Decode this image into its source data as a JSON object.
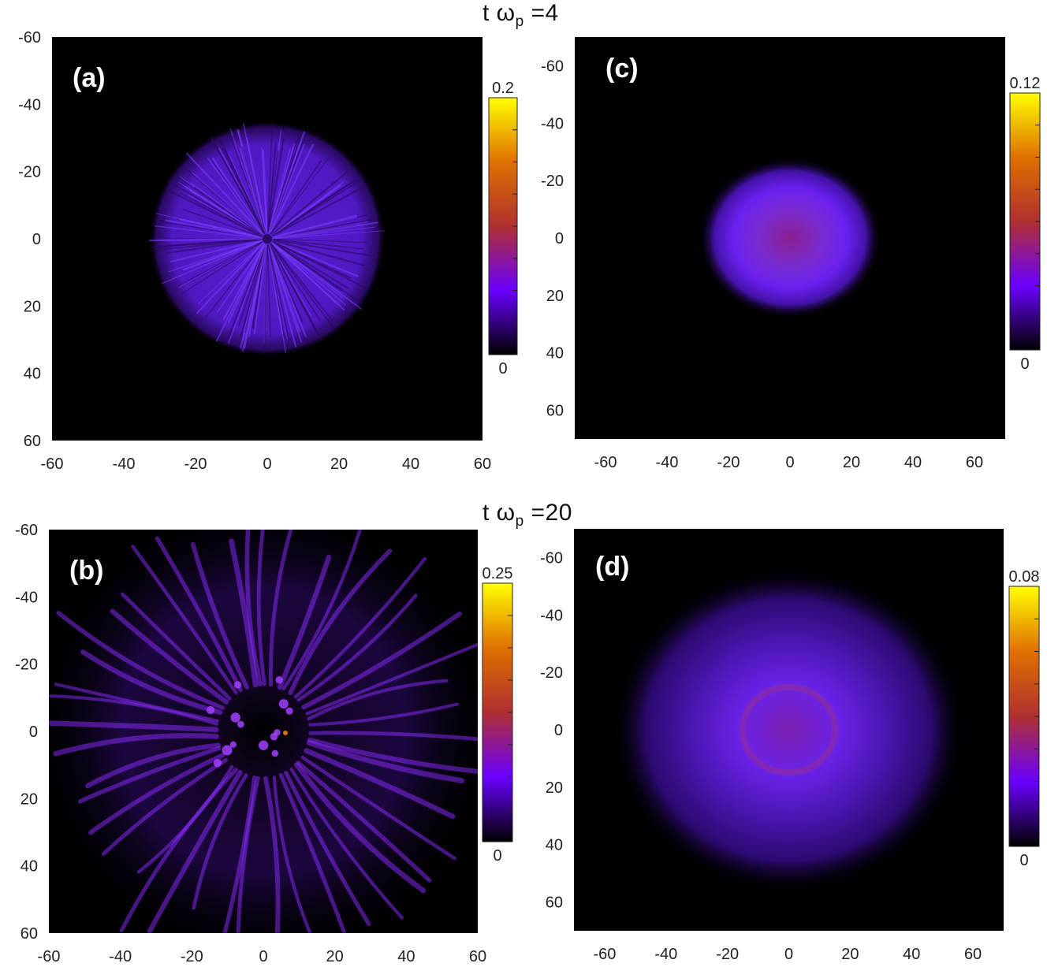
{
  "row_titles": [
    {
      "prefix": "t ω",
      "sub": "p",
      "suffix": " =4"
    },
    {
      "prefix": "t ω",
      "sub": "p",
      "suffix": " =20"
    }
  ],
  "colormap": [
    "#000000",
    "#6a00ff",
    "#b03030",
    "#e07000",
    "#ffff00"
  ],
  "chart_data": [
    {
      "type": "heatmap",
      "panel_label": "(a)",
      "pattern": "radial-filaments",
      "xlim": [
        -60,
        60
      ],
      "ylim": [
        60,
        -60
      ],
      "x_ticks": [
        -60,
        -40,
        -20,
        0,
        20,
        40,
        60
      ],
      "y_ticks": [
        -60,
        -40,
        -20,
        0,
        20,
        40,
        60
      ],
      "blob_radius": 33,
      "colorbar": {
        "max": 0.2,
        "max_label": "0.2",
        "min_label": "0"
      }
    },
    {
      "type": "heatmap",
      "panel_label": "(c)",
      "pattern": "diffuse-disc",
      "xlim": [
        -70,
        70
      ],
      "ylim": [
        70,
        -70
      ],
      "x_ticks": [
        -60,
        -40,
        -20,
        0,
        20,
        40,
        60
      ],
      "y_ticks": [
        -60,
        -40,
        -20,
        0,
        20,
        40,
        60
      ],
      "blob_radius": 30,
      "colorbar": {
        "max": 0.12,
        "max_label": "0.12",
        "min_label": "0"
      }
    },
    {
      "type": "heatmap",
      "panel_label": "(b)",
      "pattern": "long-filaments",
      "xlim": [
        -60,
        60
      ],
      "ylim": [
        60,
        -60
      ],
      "x_ticks": [
        -60,
        -40,
        -20,
        0,
        20,
        40,
        60
      ],
      "y_ticks": [
        -60,
        -40,
        -20,
        0,
        20,
        40,
        60
      ],
      "blob_radius": 60,
      "colorbar": {
        "max": 0.25,
        "max_label": "0.25",
        "min_label": "0"
      }
    },
    {
      "type": "heatmap",
      "panel_label": "(d)",
      "pattern": "wide-diffuse",
      "xlim": [
        -70,
        70
      ],
      "ylim": [
        70,
        -70
      ],
      "x_ticks": [
        -60,
        -40,
        -20,
        0,
        20,
        40,
        60
      ],
      "y_ticks": [
        -60,
        -40,
        -20,
        0,
        20,
        40,
        60
      ],
      "blob_radius": 58,
      "colorbar": {
        "max": 0.08,
        "max_label": "0.08",
        "min_label": "0"
      }
    }
  ]
}
